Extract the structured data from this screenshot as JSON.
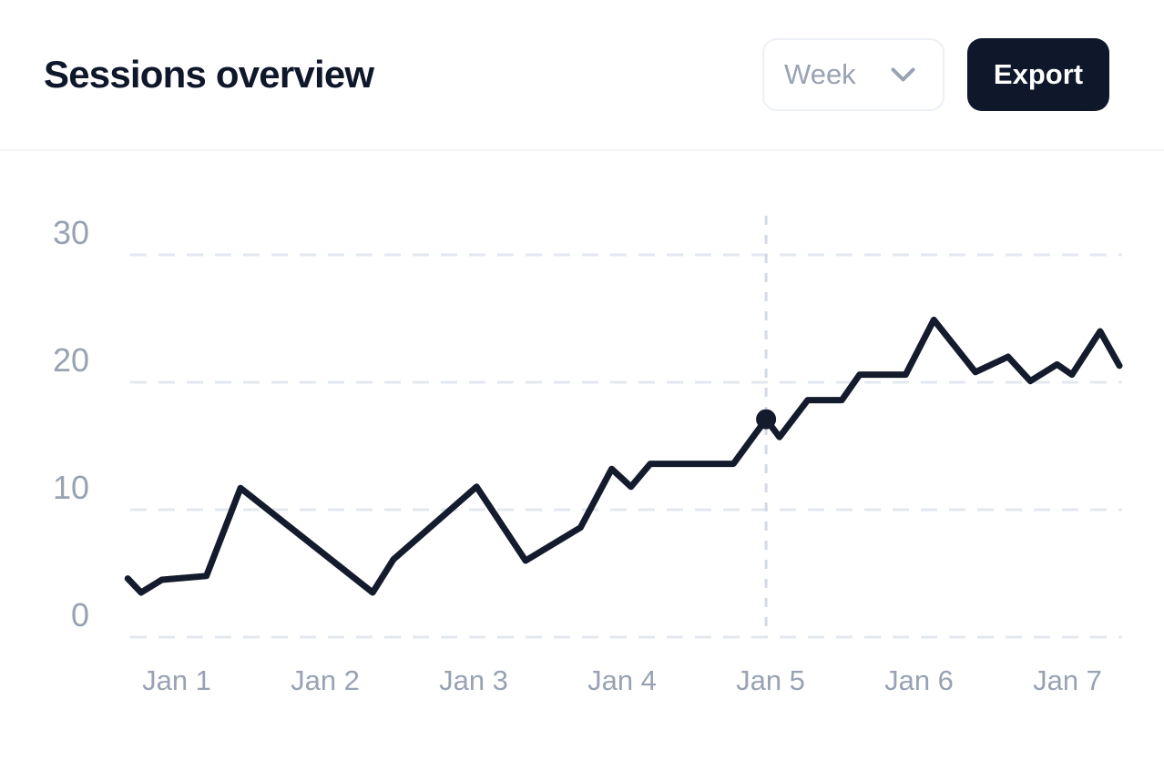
{
  "header": {
    "title": "Sessions overview",
    "period_select": {
      "value": "Week",
      "icon": "chevron-down-icon"
    },
    "export_label": "Export"
  },
  "chart_data": {
    "type": "line",
    "title": "Sessions overview",
    "series": [
      {
        "name": "Sessions",
        "x_unit": "day (Jan N, fractional position)",
        "points": [
          [
            0.67,
            4.6
          ],
          [
            0.76,
            3.5
          ],
          [
            0.9,
            4.5
          ],
          [
            1.2,
            4.8
          ],
          [
            1.43,
            11.7
          ],
          [
            2.32,
            3.5
          ],
          [
            2.46,
            6.1
          ],
          [
            3.02,
            11.8
          ],
          [
            3.35,
            6.0
          ],
          [
            3.72,
            8.6
          ],
          [
            3.93,
            13.2
          ],
          [
            4.06,
            11.8
          ],
          [
            4.19,
            13.6
          ],
          [
            4.75,
            13.6
          ],
          [
            4.97,
            17.1
          ],
          [
            5.06,
            15.7
          ],
          [
            5.25,
            18.6
          ],
          [
            5.48,
            18.6
          ],
          [
            5.6,
            20.6
          ],
          [
            5.91,
            20.6
          ],
          [
            6.1,
            24.9
          ],
          [
            6.38,
            20.8
          ],
          [
            6.6,
            22.0
          ],
          [
            6.75,
            20.1
          ],
          [
            6.93,
            21.4
          ],
          [
            7.03,
            20.6
          ],
          [
            7.22,
            24.0
          ],
          [
            7.35,
            21.3
          ]
        ]
      }
    ],
    "marker": {
      "day": 4.97,
      "value": 17.1,
      "vertical_guide": true
    },
    "x_axis": {
      "tick_labels": [
        "Jan 1",
        "Jan 2",
        "Jan 3",
        "Jan 4",
        "Jan 5",
        "Jan 6",
        "Jan 7"
      ]
    },
    "y_axis": {
      "tick_labels": [
        "0",
        "10",
        "20",
        "30"
      ],
      "ticks": [
        0,
        10,
        20,
        30
      ],
      "range": [
        0,
        33
      ]
    },
    "grid": "horizontal-dashed",
    "legend": "none",
    "colors": {
      "line": "#141b2c",
      "marker": "#141b2c",
      "gridline": "#e3e8f0",
      "guide_line": "#d4dae4",
      "axis_text": "#98a2b3"
    }
  }
}
